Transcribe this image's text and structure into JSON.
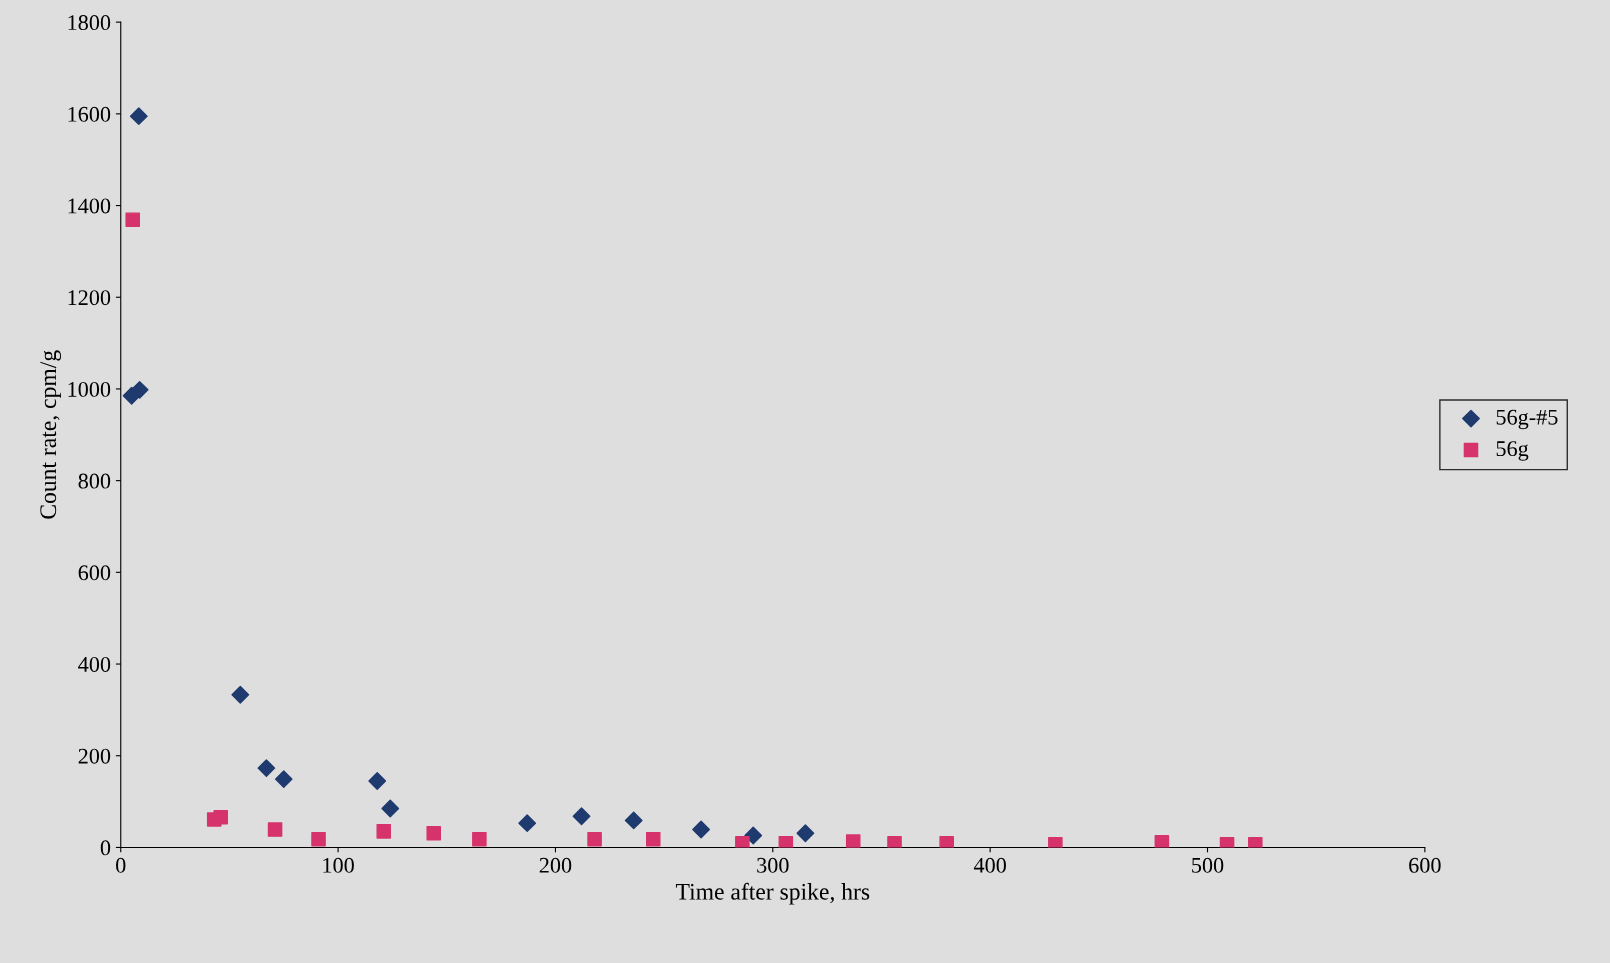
{
  "chart_data": {
    "type": "scatter",
    "xlabel": "Time after spike, hrs",
    "ylabel": "Count rate, cpm/g",
    "xlim": [
      0,
      600
    ],
    "xticks": [
      0,
      100,
      200,
      300,
      400,
      500,
      600
    ],
    "ylim": [
      0,
      1800
    ],
    "yticks": [
      0,
      200,
      400,
      600,
      800,
      1000,
      1200,
      1400,
      1600,
      1800
    ],
    "grid": false,
    "legend": "right",
    "series": [
      {
        "name": "56g-#5",
        "color": "#1f3a6e",
        "marker": "diamond",
        "x": [
          5,
          8.3,
          8.7,
          55,
          67,
          75,
          118,
          124,
          187,
          212,
          236,
          267,
          291,
          315
        ],
        "values": [
          985,
          1595,
          998,
          333,
          173,
          149,
          145,
          85,
          53,
          68,
          59,
          39,
          26,
          31
        ]
      },
      {
        "name": "56g",
        "color": "#d6336c",
        "marker": "square",
        "x": [
          5.5,
          43,
          46,
          71,
          91,
          121,
          144,
          165,
          218,
          245,
          286,
          306,
          337,
          356,
          380,
          430,
          479,
          509,
          522
        ],
        "values": [
          1369,
          61,
          66,
          39,
          18,
          35,
          31,
          18,
          18,
          18,
          9,
          9,
          13,
          9,
          9,
          7,
          11,
          7,
          7
        ]
      }
    ]
  }
}
